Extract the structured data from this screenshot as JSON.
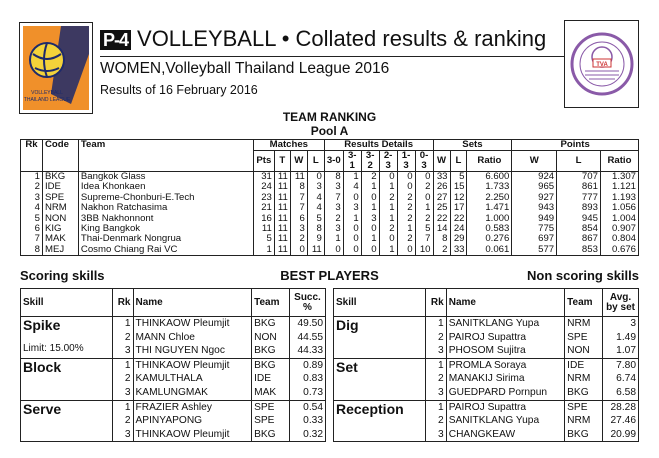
{
  "header": {
    "badge": "P-4",
    "title": "VOLLEYBALL • Collated results & ranking",
    "subtitle": "WOMEN,Volleyball Thailand League 2016",
    "date": "Results of 16 February 2016",
    "left_logo": "Volleyball Thailand League",
    "right_logo": "TVA"
  },
  "ranking": {
    "title": "TEAM RANKING",
    "pool": "Pool A",
    "groups": {
      "matches": "Matches",
      "results": "Results Details",
      "sets": "Sets",
      "points": "Points"
    },
    "columns": [
      "Rk",
      "Code",
      "Team",
      "Pts",
      "T",
      "W",
      "L",
      "3-0",
      "3-1",
      "3-2",
      "2-3",
      "1-3",
      "0-3",
      "W",
      "L",
      "Ratio",
      "W",
      "L",
      "Ratio"
    ],
    "rows": [
      [
        "1",
        "BKG",
        "Bangkok Glass",
        "31",
        "11",
        "11",
        "0",
        "8",
        "1",
        "2",
        "0",
        "0",
        "0",
        "33",
        "5",
        "6.600",
        "924",
        "707",
        "1.307"
      ],
      [
        "2",
        "IDE",
        "Idea Khonkaen",
        "24",
        "11",
        "8",
        "3",
        "3",
        "4",
        "1",
        "1",
        "0",
        "2",
        "26",
        "15",
        "1.733",
        "965",
        "861",
        "1.121"
      ],
      [
        "3",
        "SPE",
        "Supreme-Chonburi-E.Tech",
        "23",
        "11",
        "7",
        "4",
        "7",
        "0",
        "0",
        "2",
        "2",
        "0",
        "27",
        "12",
        "2.250",
        "927",
        "777",
        "1.193"
      ],
      [
        "4",
        "NRM",
        "Nakhon Ratchasima",
        "21",
        "11",
        "7",
        "4",
        "3",
        "3",
        "1",
        "1",
        "2",
        "1",
        "25",
        "17",
        "1.471",
        "943",
        "893",
        "1.056"
      ],
      [
        "5",
        "NON",
        "3BB Nakhonnont",
        "16",
        "11",
        "6",
        "5",
        "2",
        "1",
        "3",
        "1",
        "2",
        "2",
        "22",
        "22",
        "1.000",
        "949",
        "945",
        "1.004"
      ],
      [
        "6",
        "KIG",
        "King Bangkok",
        "11",
        "11",
        "3",
        "8",
        "3",
        "0",
        "0",
        "2",
        "1",
        "5",
        "14",
        "24",
        "0.583",
        "775",
        "854",
        "0.907"
      ],
      [
        "7",
        "MAK",
        "Thai-Denmark Nongrua",
        "5",
        "11",
        "2",
        "9",
        "1",
        "0",
        "1",
        "0",
        "2",
        "7",
        "8",
        "29",
        "0.276",
        "697",
        "867",
        "0.804"
      ],
      [
        "8",
        "MEJ",
        "Cosmo Chiang Rai VC",
        "1",
        "11",
        "0",
        "11",
        "0",
        "0",
        "0",
        "1",
        "0",
        "10",
        "2",
        "33",
        "0.061",
        "577",
        "853",
        "0.676"
      ]
    ]
  },
  "best_players": {
    "title": "BEST PLAYERS",
    "scoring": {
      "title": "Scoring skills",
      "headers": [
        "Skill",
        "Rk",
        "Name",
        "Team",
        "Succ. %"
      ],
      "groups": [
        {
          "skill": "Spike",
          "note": "Limit: 15.00%",
          "rows": [
            [
              "1",
              "THINKAOW Pleumjit",
              "BKG",
              "49.50"
            ],
            [
              "2",
              "MANN Chloe",
              "NON",
              "44.55"
            ],
            [
              "3",
              "THI NGUYEN Ngoc",
              "BKG",
              "44.33"
            ]
          ]
        },
        {
          "skill": "Block",
          "note": "",
          "rows": [
            [
              "1",
              "THINKAOW Pleumjit",
              "BKG",
              "0.89"
            ],
            [
              "2",
              "KAMULTHALA",
              "IDE",
              "0.83"
            ],
            [
              "3",
              "KAMLUNGMAK",
              "MAK",
              "0.73"
            ]
          ]
        },
        {
          "skill": "Serve",
          "note": "",
          "rows": [
            [
              "1",
              "FRAZIER Ashley",
              "SPE",
              "0.54"
            ],
            [
              "2",
              "APINYAPONG",
              "SPE",
              "0.33"
            ],
            [
              "3",
              "THINKAOW Pleumjit",
              "BKG",
              "0.32"
            ]
          ]
        }
      ]
    },
    "nonscoring": {
      "title": "Non scoring skills",
      "headers": [
        "Skill",
        "Rk",
        "Name",
        "Team",
        "Avg. by set"
      ],
      "groups": [
        {
          "skill": "Dig",
          "note": "",
          "rows": [
            [
              "1",
              "SANITKLANG Yupa",
              "NRM",
              "3"
            ],
            [
              "2",
              "PAIROJ Supattra",
              "SPE",
              "1.49"
            ],
            [
              "3",
              "PHOSOM Sujitra",
              "NON",
              "1.07"
            ]
          ]
        },
        {
          "skill": "Set",
          "note": "",
          "rows": [
            [
              "1",
              "PROMLA Soraya",
              "IDE",
              "7.80"
            ],
            [
              "2",
              "MANAKIJ Sirima",
              "NRM",
              "6.74"
            ],
            [
              "3",
              "GUEDPARD Pornpun",
              "BKG",
              "6.58"
            ]
          ]
        },
        {
          "skill": "Reception",
          "note": "",
          "rows": [
            [
              "1",
              "PAIROJ Supattra",
              "SPE",
              "28.28"
            ],
            [
              "2",
              "SANITKLANG Yupa",
              "NRM",
              "27.46"
            ],
            [
              "3",
              "CHANGKEAW",
              "BKG",
              "20.99"
            ]
          ]
        }
      ]
    }
  },
  "colors": {
    "logo_orange": "#f0902a",
    "logo_navy": "#1d2a6b",
    "tva_purple": "#8a5aa8"
  }
}
